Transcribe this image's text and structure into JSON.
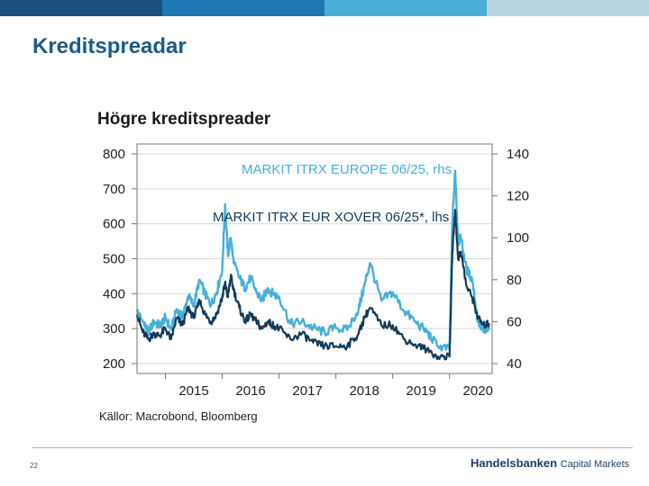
{
  "slide": {
    "title": "Kreditspreadar",
    "page_number": "22",
    "logo_brand": "Handelsbanken",
    "logo_sub": "Capital Markets",
    "topbar_colors": [
      "#ffffff",
      "#1b4f7c",
      "#1e78b5",
      "#4aaed6",
      "#b7d3e2"
    ]
  },
  "chart_data": {
    "type": "line",
    "title": "Högre kreditspreader",
    "source": "Källor: Macrobond, Bloomberg",
    "x_ticks": [
      "2015",
      "2016",
      "2017",
      "2018",
      "2019",
      "2020"
    ],
    "x_range": [
      2014.5,
      2020.75
    ],
    "y_left": {
      "range": [
        200,
        800
      ],
      "ticks": [
        "800",
        "700",
        "600",
        "500",
        "400",
        "300",
        "200"
      ]
    },
    "y_right": {
      "range": [
        40,
        140
      ],
      "ticks": [
        "140",
        "120",
        "100",
        "80",
        "60",
        "40"
      ]
    },
    "grid": true,
    "series": [
      {
        "name": "MARKIT ITRX EUROPE 06/25, rhs",
        "axis": "right",
        "color": "#45b0d8",
        "x": [
          2014.5,
          2014.6,
          2014.7,
          2014.8,
          2014.9,
          2015.0,
          2015.1,
          2015.2,
          2015.3,
          2015.4,
          2015.5,
          2015.6,
          2015.7,
          2015.8,
          2015.9,
          2016.0,
          2016.05,
          2016.1,
          2016.15,
          2016.2,
          2016.3,
          2016.4,
          2016.5,
          2016.6,
          2016.7,
          2016.8,
          2016.9,
          2017.0,
          2017.2,
          2017.4,
          2017.6,
          2017.8,
          2018.0,
          2018.2,
          2018.4,
          2018.5,
          2018.6,
          2018.8,
          2019.0,
          2019.2,
          2019.4,
          2019.6,
          2019.8,
          2020.0,
          2020.05,
          2020.1,
          2020.15,
          2020.2,
          2020.3,
          2020.4,
          2020.5,
          2020.6,
          2020.7
        ],
        "values": [
          65,
          60,
          55,
          60,
          58,
          62,
          56,
          66,
          62,
          72,
          68,
          80,
          73,
          68,
          74,
          85,
          116,
          92,
          100,
          88,
          81,
          76,
          81,
          74,
          70,
          76,
          73,
          72,
          59,
          60,
          57,
          55,
          57,
          56,
          66,
          77,
          88,
          70,
          74,
          65,
          60,
          55,
          48,
          47,
          108,
          132,
          98,
          100,
          85,
          80,
          60,
          55,
          56
        ]
      },
      {
        "name": "MARKIT ITRX EUR XOVER 06/25*, lhs",
        "axis": "left",
        "color": "#123a5a",
        "x": [
          2014.5,
          2014.6,
          2014.7,
          2014.8,
          2014.9,
          2015.0,
          2015.1,
          2015.2,
          2015.3,
          2015.4,
          2015.5,
          2015.6,
          2015.7,
          2015.8,
          2015.9,
          2016.0,
          2016.05,
          2016.1,
          2016.15,
          2016.2,
          2016.3,
          2016.4,
          2016.5,
          2016.6,
          2016.7,
          2016.8,
          2016.9,
          2017.0,
          2017.2,
          2017.4,
          2017.6,
          2017.8,
          2018.0,
          2018.2,
          2018.4,
          2018.5,
          2018.6,
          2018.8,
          2019.0,
          2019.2,
          2019.4,
          2019.6,
          2019.8,
          2020.0,
          2020.05,
          2020.1,
          2020.15,
          2020.2,
          2020.3,
          2020.4,
          2020.5,
          2020.6,
          2020.7
        ],
        "values": [
          340,
          290,
          270,
          285,
          280,
          300,
          270,
          330,
          310,
          360,
          330,
          380,
          340,
          320,
          340,
          390,
          430,
          390,
          450,
          410,
          360,
          320,
          340,
          320,
          300,
          320,
          310,
          300,
          270,
          285,
          260,
          250,
          250,
          250,
          285,
          330,
          360,
          310,
          310,
          270,
          255,
          240,
          220,
          220,
          520,
          640,
          500,
          520,
          420,
          390,
          330,
          310,
          315
        ]
      }
    ]
  }
}
